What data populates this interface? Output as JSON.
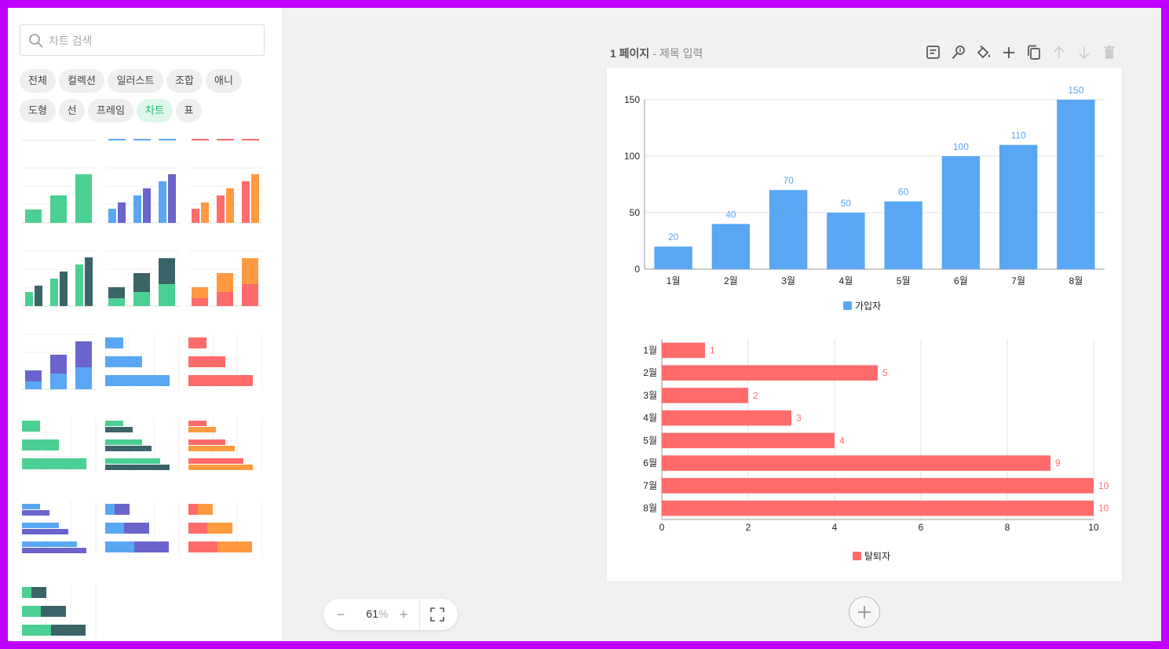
{
  "sidebar": {
    "search": {
      "placeholder": "차트 검색",
      "value": ""
    },
    "chips": [
      {
        "label": "전체",
        "active": false
      },
      {
        "label": "컬렉션",
        "active": false
      },
      {
        "label": "일러스트",
        "active": false
      },
      {
        "label": "조합",
        "active": false
      },
      {
        "label": "애니",
        "active": false
      },
      {
        "label": "도형",
        "active": false
      },
      {
        "label": "선",
        "active": false
      },
      {
        "label": "프레임",
        "active": false
      },
      {
        "label": "차트",
        "active": true
      },
      {
        "label": "표",
        "active": false
      }
    ]
  },
  "colors": {
    "blue": "#59a6f5",
    "red": "#ff6b6b",
    "green": "#4ccf92",
    "teal": "#3a6468",
    "purple": "#6a64cc",
    "orange": "#ff9a40",
    "active_chip": "#1fb86a"
  },
  "page": {
    "number_label": "1 페이지",
    "separator": "-",
    "title_placeholder": "제목 입력"
  },
  "toolbar_icons": [
    "note-icon",
    "magic-wand-icon",
    "paint-bucket-icon",
    "plus-icon",
    "duplicate-icon",
    "arrow-up-icon",
    "arrow-down-icon",
    "trash-icon"
  ],
  "zoom": {
    "value": "61",
    "unit": "%",
    "minus": "−",
    "plus": "+"
  },
  "chart_data": [
    {
      "type": "bar",
      "orientation": "vertical",
      "categories": [
        "1월",
        "2월",
        "3월",
        "4월",
        "5월",
        "6월",
        "7월",
        "8월"
      ],
      "series": [
        {
          "name": "가입자",
          "values": [
            20,
            40,
            70,
            50,
            60,
            100,
            110,
            150
          ]
        }
      ],
      "yticks": [
        0,
        50,
        100,
        150
      ],
      "ylim": [
        0,
        150
      ],
      "grid": true,
      "legend": "bottom"
    },
    {
      "type": "bar",
      "orientation": "horizontal",
      "categories": [
        "1월",
        "2월",
        "3월",
        "4월",
        "5월",
        "6월",
        "7월",
        "8월"
      ],
      "series": [
        {
          "name": "탈퇴자",
          "values": [
            1,
            5,
            2,
            3,
            4,
            9,
            10,
            10
          ]
        }
      ],
      "xticks": [
        0,
        2,
        4,
        6,
        8,
        10
      ],
      "xlim": [
        0,
        10
      ],
      "grid": true,
      "legend": "bottom"
    }
  ]
}
